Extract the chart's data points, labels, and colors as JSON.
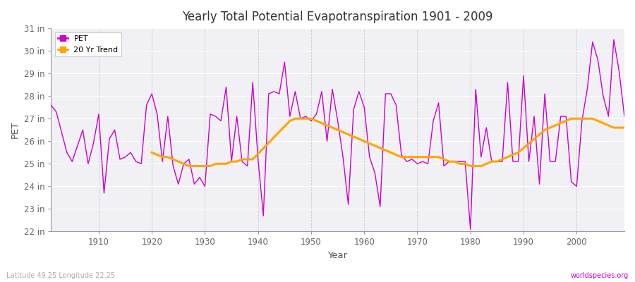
{
  "title": "Yearly Total Potential Evapotranspiration 1901 - 2009",
  "xlabel": "Year",
  "ylabel": "PET",
  "pet_color": "#cc00cc",
  "trend_color": "#ffa500",
  "bg_color": "#ffffff",
  "plot_bg_color": "#f0f0f5",
  "ylim": [
    22,
    31
  ],
  "yticks": [
    22,
    23,
    24,
    25,
    26,
    27,
    28,
    29,
    30,
    31
  ],
  "ytick_labels": [
    "22 in",
    "23 in",
    "24 in",
    "25 in",
    "26 in",
    "27 in",
    "28 in",
    "29 in",
    "30 in",
    "31 in"
  ],
  "xticks": [
    1910,
    1920,
    1930,
    1940,
    1950,
    1960,
    1970,
    1980,
    1990,
    2000
  ],
  "xlim": [
    1901,
    2009
  ],
  "footer_left": "Latitude 49.25 Longitude 22.25",
  "footer_right": "worldspecies.org",
  "years": [
    1901,
    1902,
    1903,
    1904,
    1905,
    1906,
    1907,
    1908,
    1909,
    1910,
    1911,
    1912,
    1913,
    1914,
    1915,
    1916,
    1917,
    1918,
    1919,
    1920,
    1921,
    1922,
    1923,
    1924,
    1925,
    1926,
    1927,
    1928,
    1929,
    1930,
    1931,
    1932,
    1933,
    1934,
    1935,
    1936,
    1937,
    1938,
    1939,
    1940,
    1941,
    1942,
    1943,
    1944,
    1945,
    1946,
    1947,
    1948,
    1949,
    1950,
    1951,
    1952,
    1953,
    1954,
    1955,
    1956,
    1957,
    1958,
    1959,
    1960,
    1961,
    1962,
    1963,
    1964,
    1965,
    1966,
    1967,
    1968,
    1969,
    1970,
    1971,
    1972,
    1973,
    1974,
    1975,
    1976,
    1977,
    1978,
    1979,
    1980,
    1981,
    1982,
    1983,
    1984,
    1985,
    1986,
    1987,
    1988,
    1989,
    1990,
    1991,
    1992,
    1993,
    1994,
    1995,
    1996,
    1997,
    1998,
    1999,
    2000,
    2001,
    2002,
    2003,
    2004,
    2005,
    2006,
    2007,
    2008,
    2009
  ],
  "pet_values": [
    27.6,
    27.3,
    26.4,
    25.5,
    25.1,
    25.8,
    26.5,
    25.0,
    25.9,
    27.2,
    23.7,
    26.1,
    26.5,
    25.2,
    25.3,
    25.5,
    25.1,
    25.0,
    27.6,
    28.1,
    27.2,
    25.1,
    27.1,
    24.9,
    24.1,
    25.0,
    25.2,
    24.1,
    24.4,
    24.0,
    27.2,
    27.1,
    26.9,
    28.4,
    25.1,
    27.1,
    25.1,
    24.9,
    28.6,
    25.2,
    22.7,
    28.1,
    28.2,
    28.1,
    29.5,
    27.1,
    28.2,
    27.0,
    27.1,
    26.9,
    27.2,
    28.2,
    26.0,
    28.3,
    26.9,
    25.3,
    23.2,
    27.4,
    28.2,
    27.5,
    25.3,
    24.6,
    23.1,
    28.1,
    28.1,
    27.6,
    25.4,
    25.1,
    25.2,
    25.0,
    25.1,
    25.0,
    26.9,
    27.7,
    24.9,
    25.1,
    25.1,
    25.1,
    25.1,
    22.1,
    28.3,
    25.3,
    26.6,
    25.1,
    25.1,
    25.1,
    28.6,
    25.1,
    25.1,
    28.9,
    25.1,
    27.1,
    24.1,
    28.1,
    25.1,
    25.1,
    27.1,
    27.1,
    24.2,
    24.0,
    26.9,
    28.3,
    30.4,
    29.6,
    28.0,
    27.1,
    30.5,
    29.1,
    27.1
  ],
  "trend_years": [
    1920,
    1921,
    1922,
    1923,
    1924,
    1925,
    1926,
    1927,
    1928,
    1929,
    1930,
    1931,
    1932,
    1933,
    1934,
    1935,
    1936,
    1937,
    1938,
    1939,
    1946,
    1947,
    1948,
    1949,
    1950,
    1951,
    1952,
    1953,
    1954,
    1955,
    1956,
    1957,
    1958,
    1959,
    1960,
    1961,
    1962,
    1963,
    1964,
    1965,
    1966,
    1967,
    1968,
    1969,
    1970,
    1971,
    1972,
    1973,
    1974,
    1975,
    1976,
    1977,
    1978,
    1979,
    1980,
    1981,
    1982,
    1983,
    1984,
    1985,
    1986,
    1987,
    1988,
    1989,
    1990,
    1991,
    1992,
    1993,
    1994,
    1995,
    1996,
    1997,
    1998,
    1999,
    2000,
    2001,
    2002,
    2003,
    2004,
    2005,
    2006,
    2007,
    2008,
    2009
  ],
  "trend_values": [
    25.5,
    25.4,
    25.3,
    25.3,
    25.2,
    25.1,
    25.0,
    24.9,
    24.9,
    24.9,
    24.9,
    24.9,
    25.0,
    25.0,
    25.0,
    25.1,
    25.1,
    25.2,
    25.2,
    25.2,
    26.9,
    27.0,
    27.0,
    27.0,
    27.0,
    26.9,
    26.8,
    26.7,
    26.6,
    26.5,
    26.4,
    26.3,
    26.2,
    26.1,
    26.0,
    25.9,
    25.8,
    25.7,
    25.6,
    25.5,
    25.4,
    25.3,
    25.3,
    25.3,
    25.3,
    25.3,
    25.3,
    25.3,
    25.3,
    25.2,
    25.1,
    25.1,
    25.0,
    25.0,
    24.9,
    24.9,
    24.9,
    25.0,
    25.1,
    25.1,
    25.2,
    25.3,
    25.4,
    25.5,
    25.7,
    25.9,
    26.1,
    26.3,
    26.5,
    26.6,
    26.7,
    26.8,
    26.9,
    27.0,
    27.0,
    27.0,
    27.0,
    27.0,
    26.9,
    26.8,
    26.7,
    26.6,
    26.6,
    26.6
  ]
}
